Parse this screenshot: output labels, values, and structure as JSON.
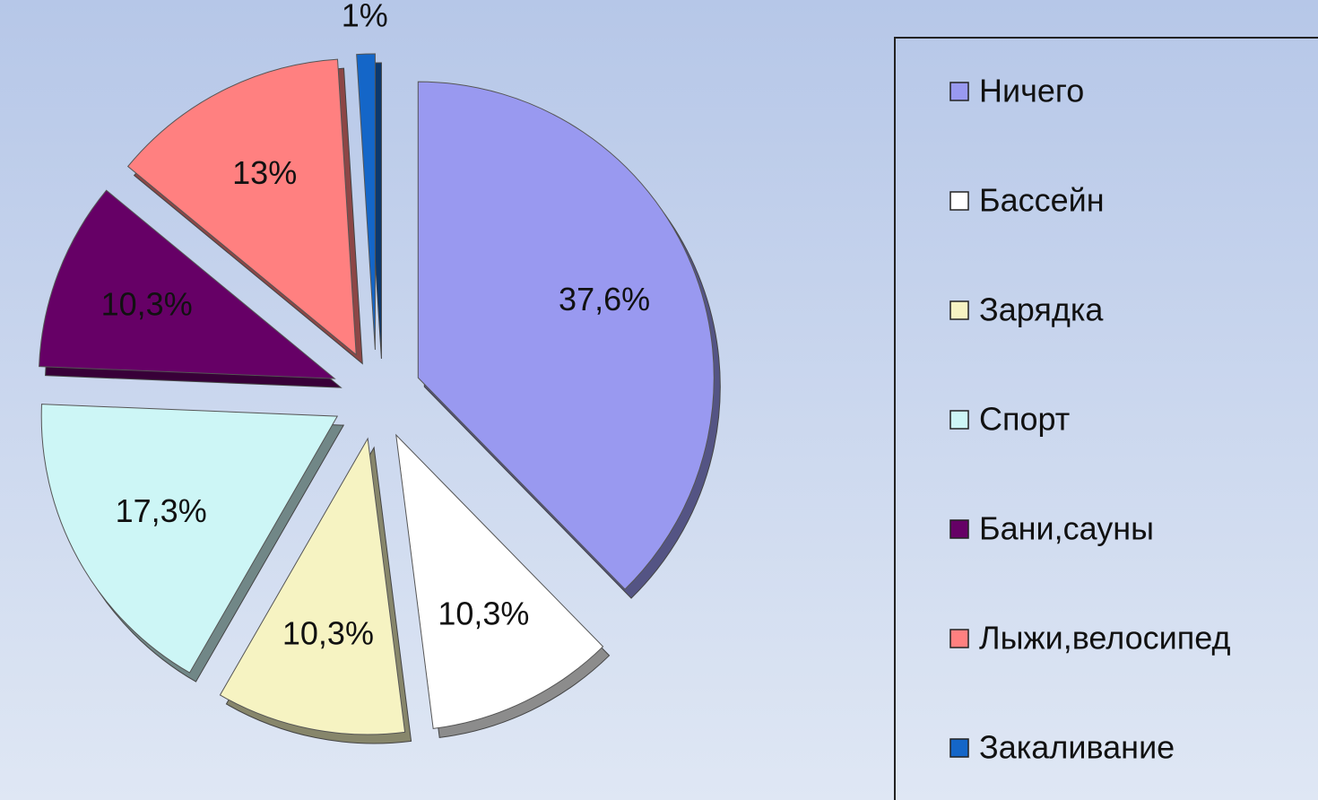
{
  "chart_data": {
    "type": "pie",
    "categories": [
      "Ничего",
      "Бассейн",
      "Зарядка",
      "Спорт",
      "Бани,сауны",
      "Лыжи,велосипед",
      "Закаливание"
    ],
    "values": [
      37.6,
      10.3,
      10.3,
      17.3,
      10.3,
      13,
      1
    ],
    "value_labels": [
      "37,6%",
      "10,3%",
      "10,3%",
      "17,3%",
      "10,3%",
      "13%",
      "1%"
    ],
    "colors": [
      "#9999f0",
      "#ffffff",
      "#f6f3c2",
      "#cdf6f6",
      "#660066",
      "#ff8080",
      "#1466c8"
    ],
    "legend": "right"
  }
}
